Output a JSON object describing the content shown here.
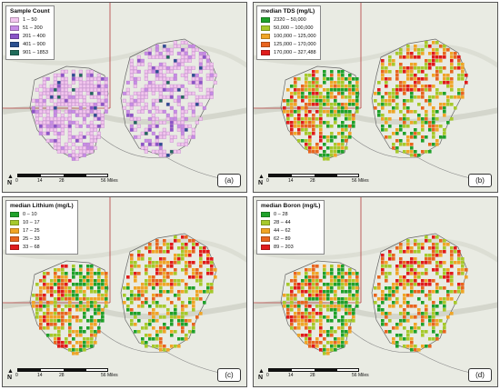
{
  "scale_bar": {
    "ticks": [
      "0",
      "14",
      "28",
      "56 Miles"
    ]
  },
  "north_label": "N",
  "panels": [
    {
      "id": "a",
      "panel_label": "(a)",
      "legend_title": "Sample Count",
      "legend": [
        {
          "label": "1 – 50",
          "color": "#f2c6ee"
        },
        {
          "label": "51 – 200",
          "color": "#c78ce6"
        },
        {
          "label": "201 – 400",
          "color": "#8a55c8"
        },
        {
          "label": "401 – 900",
          "color": "#2a4f8f"
        },
        {
          "label": "901 – 1853",
          "color": "#1f6b5a"
        }
      ]
    },
    {
      "id": "b",
      "panel_label": "(b)",
      "legend_title": "median TDS (mg/L)",
      "legend": [
        {
          "label": "2320 – 50,000",
          "color": "#1fa12a"
        },
        {
          "label": "50,000 – 100,000",
          "color": "#a6c92a"
        },
        {
          "label": "100,000 – 125,000",
          "color": "#f0a527"
        },
        {
          "label": "125,000 – 170,000",
          "color": "#e8651f"
        },
        {
          "label": "170,000 – 327,488",
          "color": "#e01b1b"
        }
      ]
    },
    {
      "id": "c",
      "panel_label": "(c)",
      "legend_title": "median Lithium (mg/L)",
      "legend": [
        {
          "label": "0 – 10",
          "color": "#1fa12a"
        },
        {
          "label": "10 – 17",
          "color": "#a6c92a"
        },
        {
          "label": "17 – 25",
          "color": "#f0a527"
        },
        {
          "label": "25 – 33",
          "color": "#e8651f"
        },
        {
          "label": "33 – 68",
          "color": "#e01b1b"
        }
      ]
    },
    {
      "id": "d",
      "panel_label": "(d)",
      "legend_title": "median Boron (mg/L)",
      "legend": [
        {
          "label": "0 – 28",
          "color": "#1fa12a"
        },
        {
          "label": "28 – 44",
          "color": "#a6c92a"
        },
        {
          "label": "44 – 62",
          "color": "#f0a527"
        },
        {
          "label": "62 – 89",
          "color": "#e8651f"
        },
        {
          "label": "89 – 203",
          "color": "#e01b1b"
        }
      ]
    }
  ]
}
